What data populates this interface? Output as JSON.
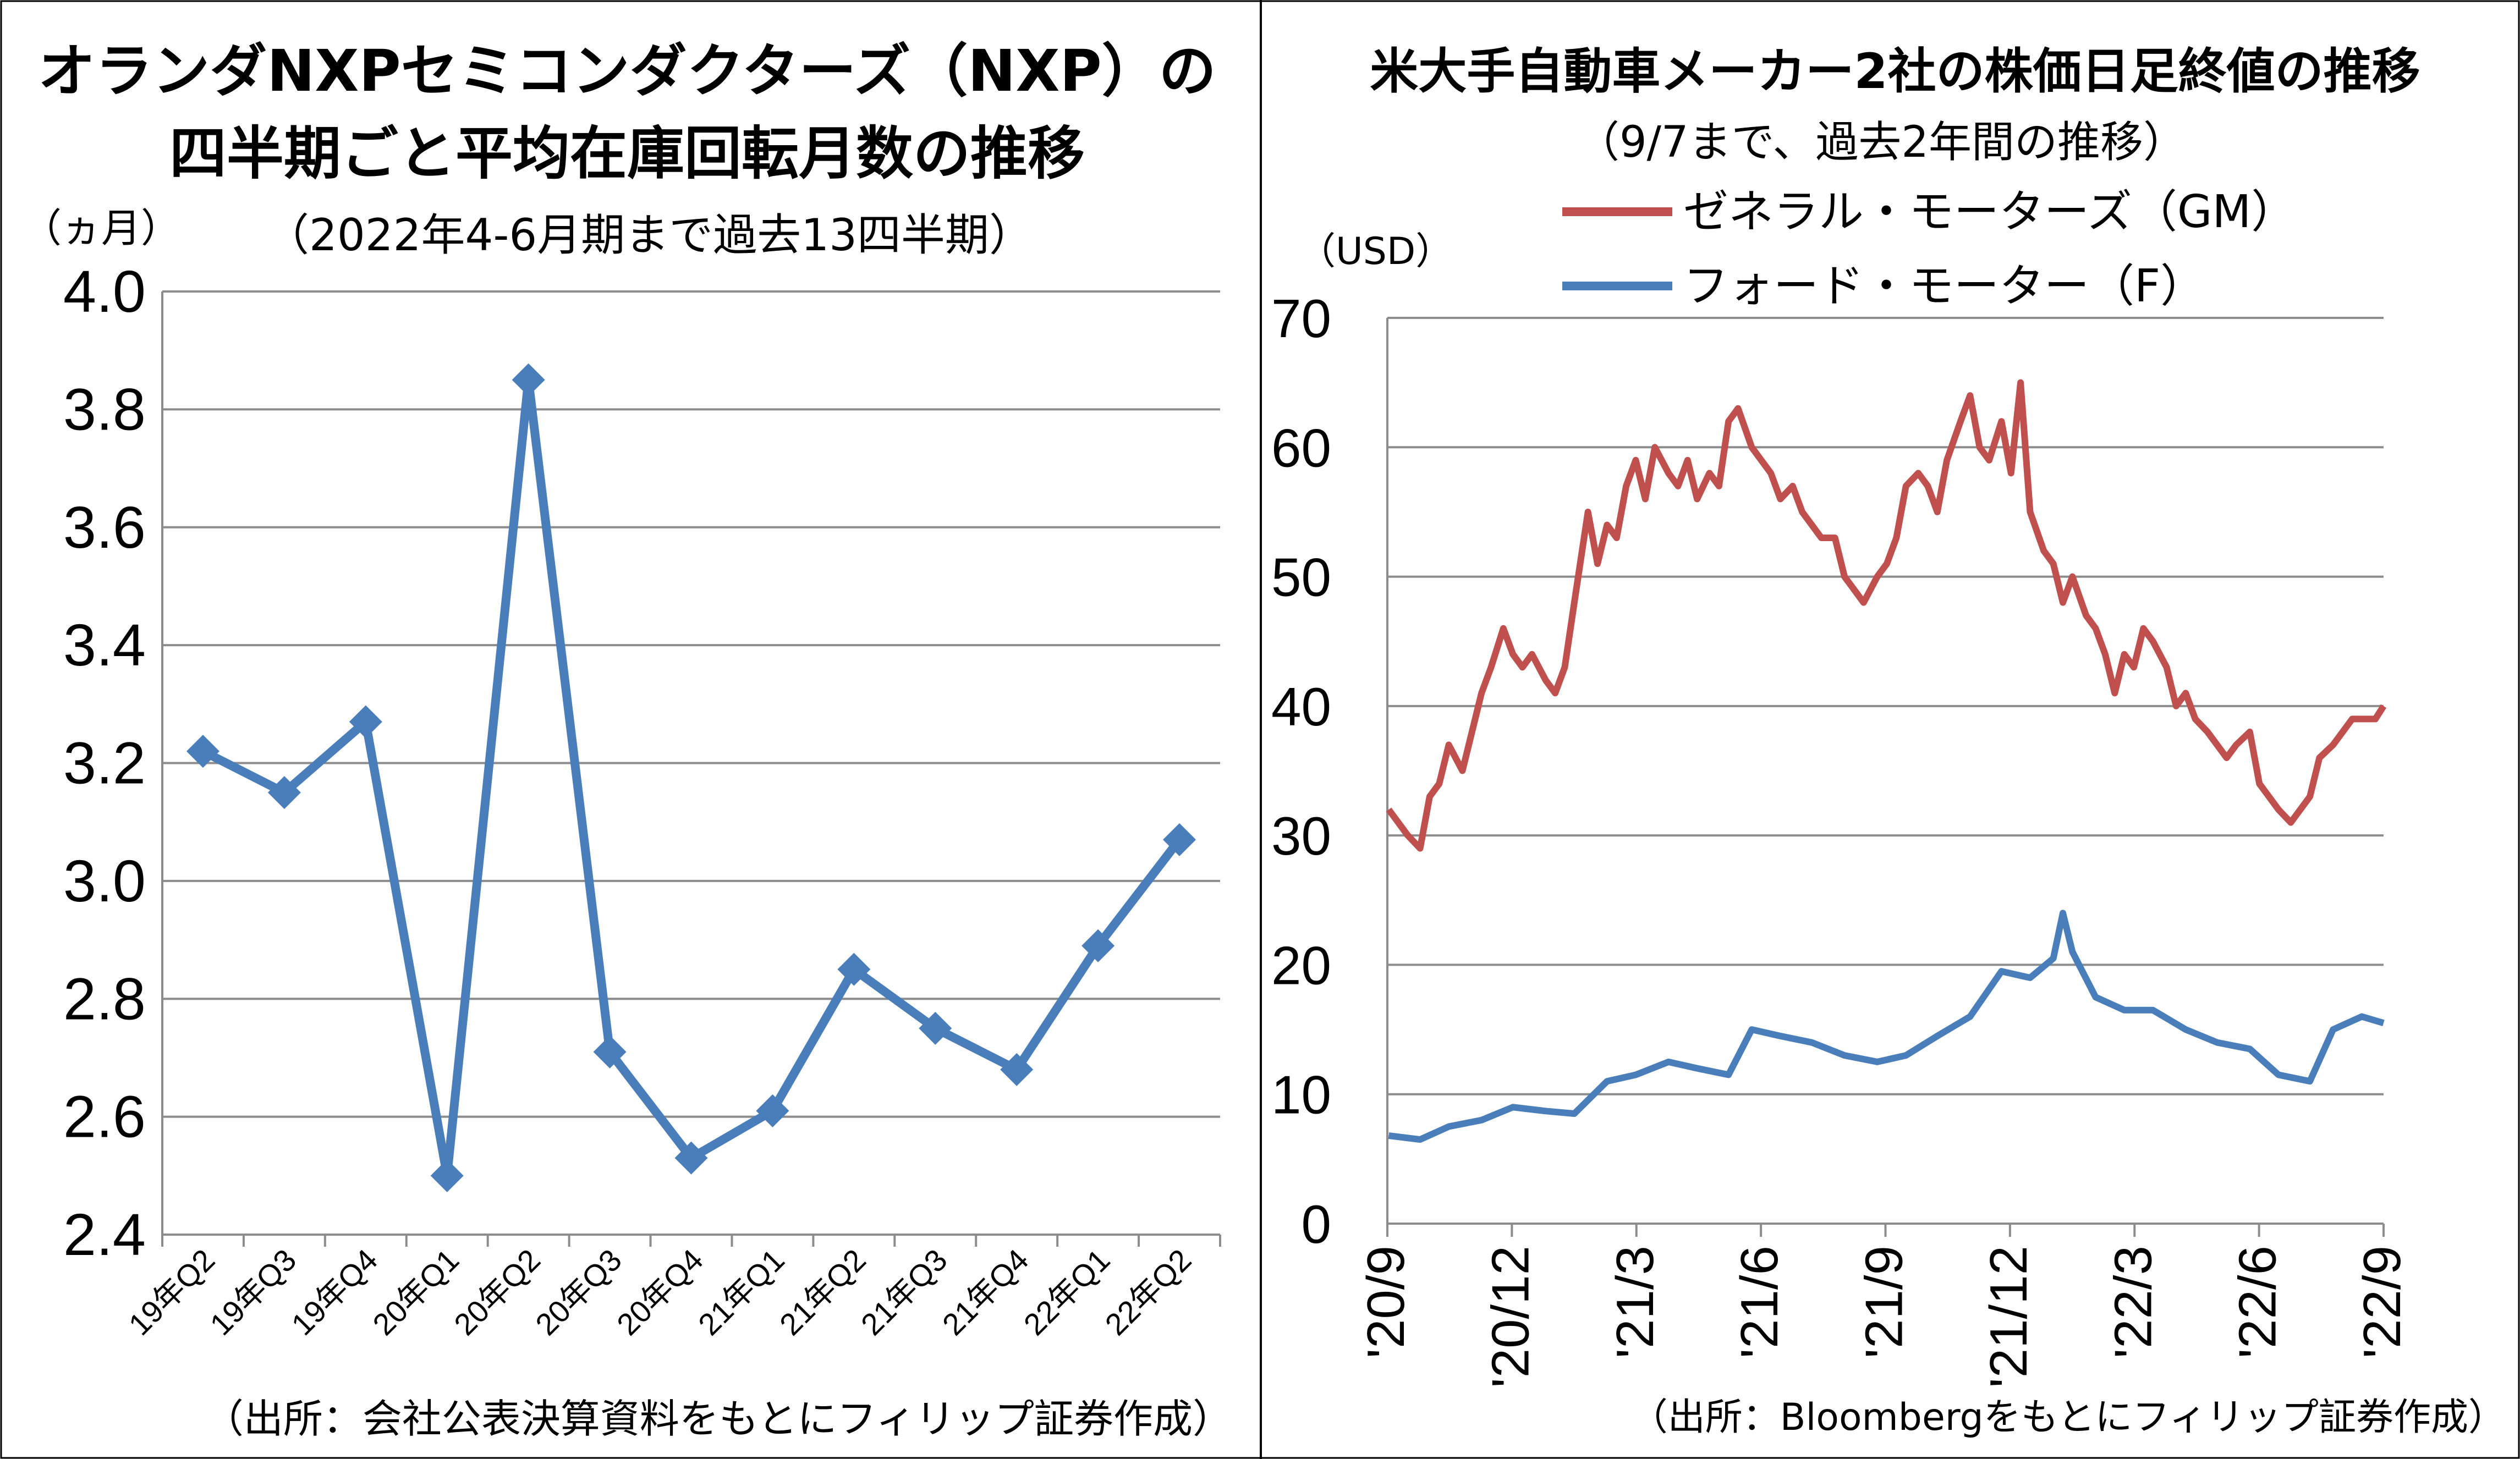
{
  "chart_data": [
    {
      "type": "line",
      "title": "オランダNXPセミコンダクターズ（NXP）の",
      "title_line2": "四半期ごと平均在庫回転月数の推移",
      "subtitle": "（2022年4-6月期まで過去13四半期）",
      "ylabel": "（ヵ月）",
      "ylim": [
        2.4,
        4.0
      ],
      "yticks": [
        "4.0",
        "3.8",
        "3.6",
        "3.4",
        "3.2",
        "3.0",
        "2.8",
        "2.6",
        "2.4"
      ],
      "categories": [
        "19年Q2",
        "19年Q3",
        "19年Q4",
        "20年Q1",
        "20年Q2",
        "20年Q3",
        "20年Q4",
        "21年Q1",
        "21年Q2",
        "21年Q3",
        "21年Q4",
        "22年Q1",
        "22年Q2"
      ],
      "series": [
        {
          "values": [
            3.22,
            3.15,
            3.27,
            2.5,
            3.85,
            2.71,
            2.53,
            2.61,
            2.85,
            2.75,
            2.68,
            2.89,
            3.07
          ]
        }
      ],
      "grid": true,
      "marker": "diamond",
      "color": "#4a7ebb",
      "source": "（出所：会社公表決算資料をもとにフィリップ証券作成）"
    },
    {
      "type": "line",
      "title": "米大手自動車メーカー2社の株価日足終値の推移",
      "subtitle": "（9/7まで、過去2年間の推移）",
      "ylabel": "（USD）",
      "ylim": [
        0,
        70
      ],
      "yticks": [
        "70",
        "60",
        "50",
        "40",
        "30",
        "20",
        "10",
        "0"
      ],
      "x_ticks": [
        "'20/9",
        "'20/12",
        "'21/3",
        "'21/6",
        "'21/9",
        "'21/12",
        "'22/3",
        "'22/6",
        "'22/9"
      ],
      "legend_position": "top",
      "grid": true,
      "series": [
        {
          "name": "ゼネラル・モーターズ（GM）",
          "color": "#c0504d",
          "x": [
            "2020-09-08",
            "2020-09-15",
            "2020-09-22",
            "2020-10-01",
            "2020-10-08",
            "2020-10-15",
            "2020-10-22",
            "2020-11-01",
            "2020-11-08",
            "2020-11-15",
            "2020-11-22",
            "2020-12-01",
            "2020-12-08",
            "2020-12-15",
            "2020-12-22",
            "2021-01-01",
            "2021-01-08",
            "2021-01-15",
            "2021-01-22",
            "2021-02-01",
            "2021-02-08",
            "2021-02-15",
            "2021-02-22",
            "2021-03-01",
            "2021-03-08",
            "2021-03-15",
            "2021-03-22",
            "2021-04-01",
            "2021-04-08",
            "2021-04-15",
            "2021-04-22",
            "2021-05-01",
            "2021-05-08",
            "2021-05-15",
            "2021-05-22",
            "2021-06-01",
            "2021-06-08",
            "2021-06-15",
            "2021-06-22",
            "2021-07-01",
            "2021-07-08",
            "2021-07-15",
            "2021-07-22",
            "2021-08-01",
            "2021-08-08",
            "2021-08-15",
            "2021-08-22",
            "2021-09-01",
            "2021-09-08",
            "2021-09-15",
            "2021-09-22",
            "2021-10-01",
            "2021-10-08",
            "2021-10-15",
            "2021-10-22",
            "2021-11-01",
            "2021-11-08",
            "2021-11-15",
            "2021-11-22",
            "2021-12-01",
            "2021-12-08",
            "2021-12-15",
            "2021-12-22",
            "2022-01-01",
            "2022-01-08",
            "2022-01-15",
            "2022-01-22",
            "2022-02-01",
            "2022-02-08",
            "2022-02-15",
            "2022-02-22",
            "2022-03-01",
            "2022-03-08",
            "2022-03-15",
            "2022-03-22",
            "2022-04-01",
            "2022-04-08",
            "2022-04-15",
            "2022-04-22",
            "2022-05-01",
            "2022-05-08",
            "2022-05-15",
            "2022-05-22",
            "2022-06-01",
            "2022-06-08",
            "2022-06-15",
            "2022-06-22",
            "2022-07-01",
            "2022-07-08",
            "2022-07-15",
            "2022-07-22",
            "2022-08-01",
            "2022-08-08",
            "2022-08-15",
            "2022-08-22",
            "2022-09-01",
            "2022-09-07"
          ],
          "values": [
            32,
            31,
            30,
            29,
            33,
            34,
            37,
            35,
            38,
            41,
            43,
            46,
            44,
            43,
            44,
            42,
            41,
            43,
            48,
            55,
            51,
            54,
            53,
            57,
            59,
            56,
            60,
            58,
            57,
            59,
            56,
            58,
            57,
            62,
            63,
            60,
            59,
            58,
            56,
            57,
            55,
            54,
            53,
            53,
            50,
            49,
            48,
            50,
            51,
            53,
            57,
            58,
            57,
            55,
            59,
            62,
            64,
            60,
            59,
            62,
            58,
            65,
            55,
            52,
            51,
            48,
            50,
            47,
            46,
            44,
            41,
            44,
            43,
            46,
            45,
            43,
            40,
            41,
            39,
            38,
            37,
            36,
            37,
            38,
            34,
            33,
            32,
            31,
            32,
            33,
            36,
            37,
            38,
            39,
            39,
            39,
            40
          ]
        },
        {
          "name": "フォード・モーター（F）",
          "color": "#4a7ebb",
          "x": [
            "2020-09-08",
            "2020-10-01",
            "2020-10-22",
            "2020-11-15",
            "2020-12-08",
            "2021-01-01",
            "2021-01-22",
            "2021-02-15",
            "2021-03-08",
            "2021-04-01",
            "2021-04-22",
            "2021-05-15",
            "2021-06-01",
            "2021-06-22",
            "2021-07-15",
            "2021-08-08",
            "2021-09-01",
            "2021-09-22",
            "2021-10-15",
            "2021-11-08",
            "2021-12-01",
            "2021-12-22",
            "2022-01-08",
            "2022-01-15",
            "2022-01-22",
            "2022-02-08",
            "2022-03-01",
            "2022-03-22",
            "2022-04-15",
            "2022-05-08",
            "2022-06-01",
            "2022-06-22",
            "2022-07-15",
            "2022-08-01",
            "2022-08-22",
            "2022-09-07"
          ],
          "values": [
            6.8,
            6.5,
            7.5,
            8.0,
            9.0,
            8.7,
            8.5,
            11.0,
            11.5,
            12.5,
            12.0,
            11.5,
            15.0,
            14.5,
            14.0,
            13.0,
            12.5,
            13.0,
            14.5,
            16.0,
            19.5,
            19.0,
            20.5,
            24.0,
            21.0,
            17.5,
            16.5,
            16.5,
            15.0,
            14.0,
            13.5,
            11.5,
            11.0,
            15.0,
            16.0,
            15.5
          ]
        }
      ],
      "source": "（出所：Bloombergをもとにフィリップ証券作成）"
    }
  ]
}
